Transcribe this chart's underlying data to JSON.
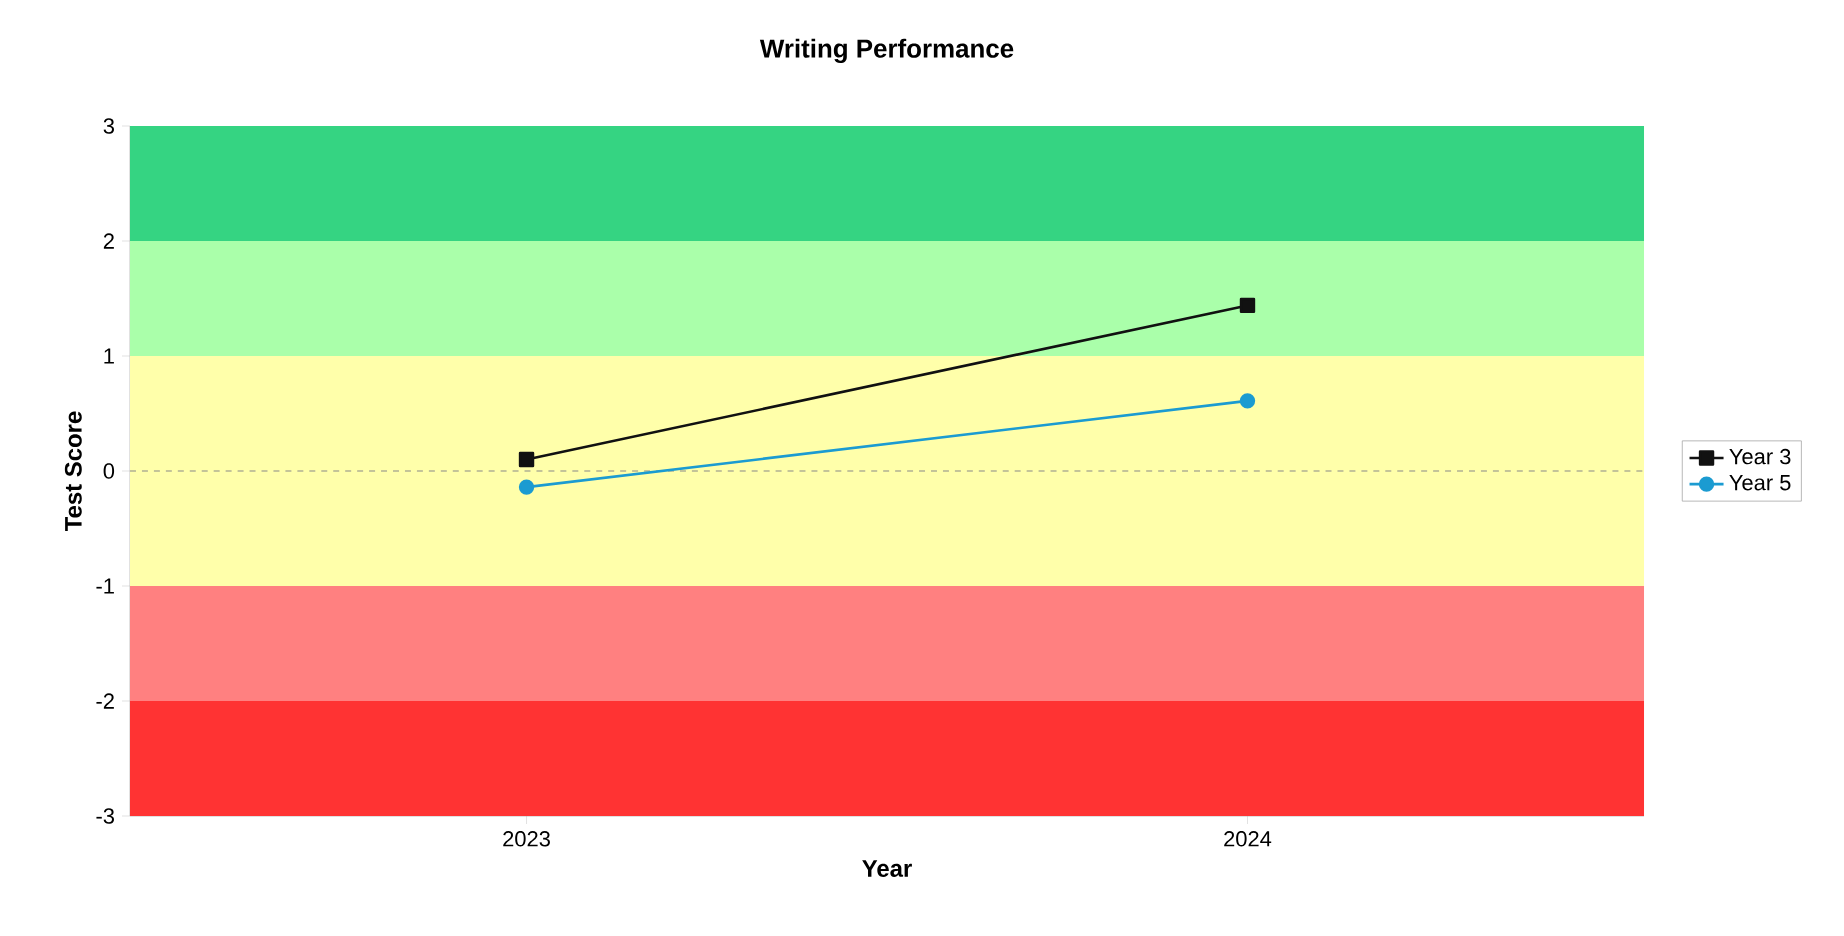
{
  "chart_data": {
    "type": "line",
    "title": "Writing Performance",
    "xlabel": "Year",
    "ylabel": "Test Score",
    "categories": [
      "2023",
      "2024"
    ],
    "series": [
      {
        "name": "Year 3",
        "color": "#111111",
        "marker": "square",
        "values": [
          0.1,
          1.44
        ]
      },
      {
        "name": "Year 5",
        "color": "#1b9bd1",
        "marker": "circle",
        "values": [
          -0.14,
          0.61
        ]
      }
    ],
    "ylim": [
      -3,
      3
    ],
    "yticks": [
      -3,
      -2,
      -1,
      0,
      1,
      2,
      3
    ],
    "bands": [
      {
        "axis": "y",
        "from": 2,
        "to": 3,
        "color": "#35d482"
      },
      {
        "axis": "y",
        "from": 1,
        "to": 2,
        "color": "#aaffaa"
      },
      {
        "axis": "y",
        "from": -1,
        "to": 1,
        "color": "#ffffaa"
      },
      {
        "axis": "y",
        "from": -2,
        "to": -1,
        "color": "#ff8080"
      },
      {
        "axis": "y",
        "from": -3,
        "to": -2,
        "color": "#ff3333"
      }
    ],
    "ref_lines": [
      {
        "axis": "y",
        "value": 0,
        "color": "#888888",
        "line_style": "dashed"
      }
    ],
    "legend": "right",
    "grid": false,
    "line_style": "solid"
  }
}
